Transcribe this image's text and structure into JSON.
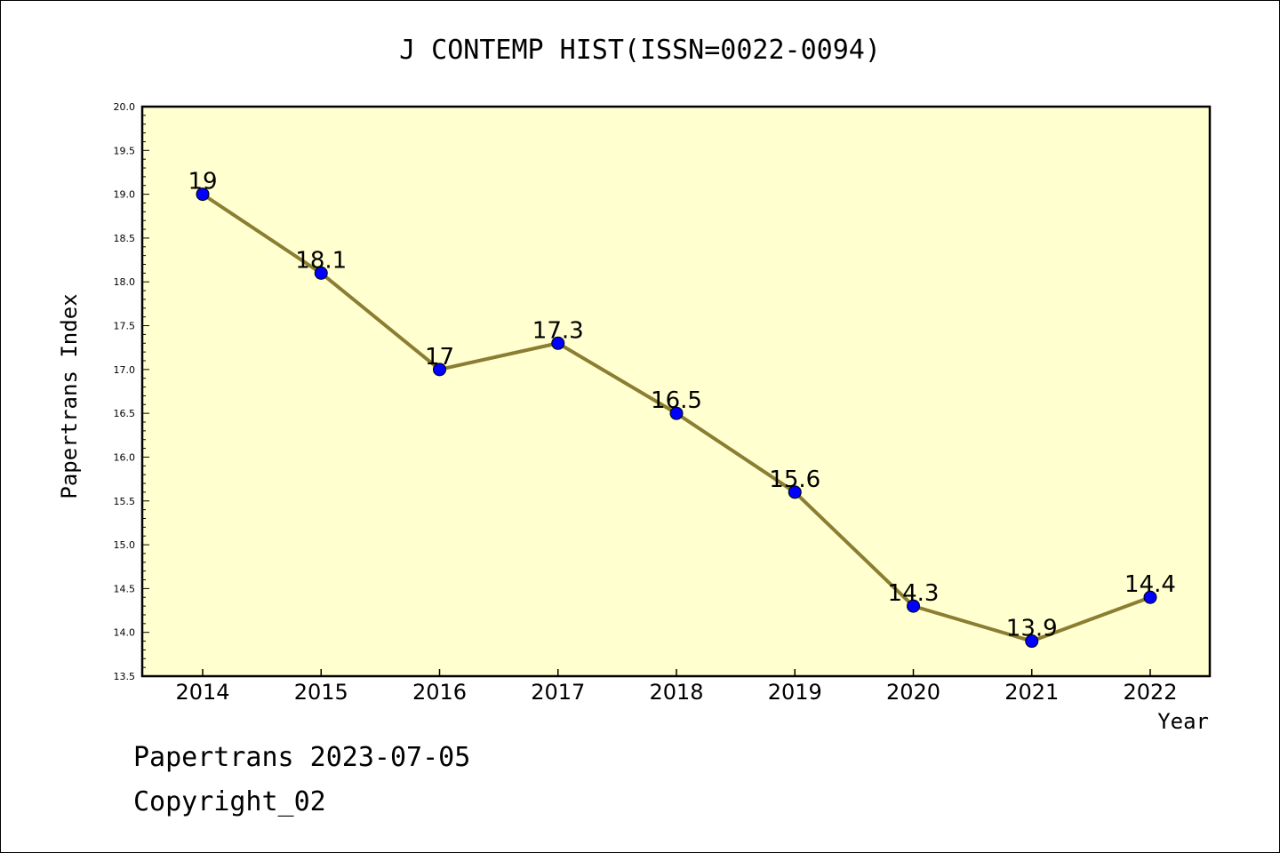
{
  "chart_data": {
    "type": "line",
    "title": "J CONTEMP HIST(ISSN=0022-0094)",
    "xlabel": "Year",
    "ylabel": "Papertrans Index",
    "categories": [
      "2014",
      "2015",
      "2016",
      "2017",
      "2018",
      "2019",
      "2020",
      "2021",
      "2022"
    ],
    "series": [
      {
        "values": [
          19,
          18.1,
          17,
          17.3,
          16.5,
          15.6,
          14.3,
          13.9,
          14.4
        ],
        "labels": [
          "19",
          "18.1",
          "17",
          "17.3",
          "16.5",
          "15.6",
          "14.3",
          "13.9",
          "14.4"
        ]
      }
    ],
    "ylim": [
      13.5,
      20.0
    ],
    "yticks": [
      "13.5",
      "14.0",
      "14.5",
      "15.0",
      "15.5",
      "16.0",
      "16.5",
      "17.0",
      "17.5",
      "18.0",
      "18.5",
      "19.0",
      "19.5",
      "20.0"
    ],
    "grid": false,
    "colors": {
      "plot_background": "#ffffd0",
      "line": "#8b7d32",
      "marker": "#0000ff"
    }
  },
  "footer": {
    "source": "Papertrans 2023-07-05",
    "copyright": "Copyright_02"
  }
}
